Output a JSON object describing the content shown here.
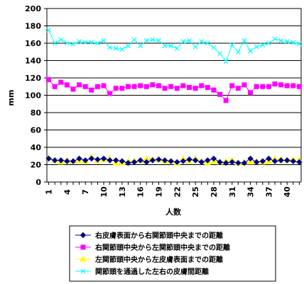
{
  "chart_data": {
    "type": "line",
    "xlabel": "人数",
    "ylabel": "mm",
    "ylim": [
      0,
      200
    ],
    "yticks": [
      0,
      20,
      40,
      60,
      80,
      100,
      120,
      140,
      160,
      180,
      200
    ],
    "xtick_labels": [
      "1",
      "4",
      "7",
      "10",
      "13",
      "16",
      "19",
      "22",
      "25",
      "28",
      "31",
      "34",
      "37",
      "40"
    ],
    "x": [
      1,
      2,
      3,
      4,
      5,
      6,
      7,
      8,
      9,
      10,
      11,
      12,
      13,
      14,
      15,
      16,
      17,
      18,
      19,
      20,
      21,
      22,
      23,
      24,
      25,
      26,
      27,
      28,
      29,
      30,
      31,
      32,
      33,
      34,
      35,
      36,
      37,
      38,
      39,
      40,
      41,
      42
    ],
    "grid": "horizontal",
    "legend_position": "bottom",
    "series": [
      {
        "name": "右皮膚表面から右関節頭中央までの距離",
        "color": "#00008b",
        "marker": "diamond",
        "values": [
          27,
          25,
          25,
          24,
          24,
          27,
          25,
          27,
          26,
          27,
          25,
          25,
          24,
          22,
          23,
          25,
          23,
          25,
          26,
          25,
          24,
          23,
          24,
          26,
          25,
          23,
          25,
          27,
          23,
          22,
          23,
          22,
          22,
          27,
          23,
          24,
          27,
          24,
          25,
          25,
          24,
          23
        ]
      },
      {
        "name": "右関節頭中央から左関節頭中央までの距離",
        "color": "#ff00ff",
        "marker": "square",
        "values": [
          118,
          110,
          115,
          112,
          107,
          112,
          110,
          106,
          110,
          111,
          102,
          108,
          108,
          110,
          110,
          111,
          110,
          112,
          111,
          108,
          110,
          108,
          111,
          109,
          108,
          111,
          109,
          106,
          101,
          94,
          111,
          108,
          112,
          103,
          110,
          110,
          110,
          113,
          112,
          111,
          111,
          110
        ]
      },
      {
        "name": "左関節頭中央から左皮膚表面までの距離",
        "color": "#ffff00",
        "marker": "triangle",
        "values": [
          28,
          25,
          23,
          25,
          24,
          25,
          24,
          29,
          25,
          26,
          27,
          22,
          22,
          24,
          24,
          25,
          27,
          26,
          26,
          24,
          24,
          22,
          27,
          24,
          27,
          24,
          22,
          24,
          23,
          24,
          25,
          22,
          23,
          23,
          24,
          23,
          24,
          27,
          26,
          25,
          26,
          25
        ]
      },
      {
        "name": "関節頭を通過した左右の皮膚間距離",
        "color": "#00ffff",
        "marker": "x",
        "values": [
          175,
          160,
          164,
          160,
          159,
          162,
          161,
          161,
          160,
          163,
          155,
          154,
          153,
          157,
          164,
          157,
          163,
          164,
          163,
          157,
          157,
          154,
          162,
          163,
          156,
          162,
          160,
          155,
          148,
          139,
          158,
          150,
          163,
          151,
          156,
          158,
          160,
          165,
          163,
          162,
          161,
          159
        ]
      }
    ]
  }
}
